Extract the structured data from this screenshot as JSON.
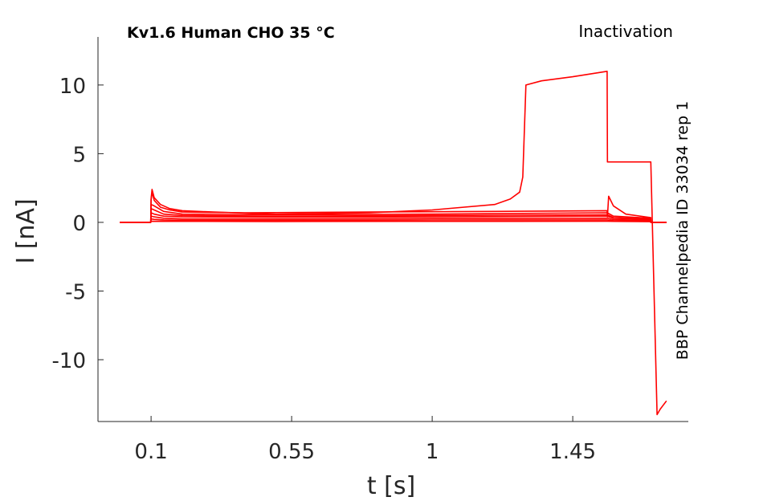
{
  "chart_data": {
    "type": "line",
    "title": "Kv1.6  Human  CHO  35 °C",
    "protocol_label": "Inactivation",
    "source_label": "BBP Channelpedia ID 33034 rep 1",
    "xlabel": "t [s]",
    "ylabel": "I [nA]",
    "xlim": [
      -0.07,
      1.82
    ],
    "ylim": [
      -14.5,
      13.5
    ],
    "xticks": [
      0.1,
      0.55,
      1,
      1.45
    ],
    "xtick_labels": [
      "0.1",
      "0.55",
      "1",
      "1.45"
    ],
    "yticks": [
      10,
      5,
      0,
      -5,
      -10
    ],
    "ytick_labels": [
      "10",
      "5",
      "0",
      "-5",
      "-10"
    ],
    "grid": false,
    "line_color": "#ff0000",
    "series": [
      {
        "x": [
          0.0,
          0.099,
          0.1,
          0.103,
          0.11,
          0.13,
          0.16,
          0.2,
          0.3,
          0.5,
          0.8,
          1.0,
          1.2,
          1.25,
          1.28,
          1.29,
          1.3,
          1.35,
          1.45,
          1.56,
          1.561,
          1.565,
          1.57,
          1.6,
          1.65,
          1.7,
          1.72,
          1.73,
          1.75
        ],
        "y": [
          0.0,
          0.0,
          1.7,
          2.4,
          1.8,
          1.3,
          1.0,
          0.85,
          0.75,
          0.6,
          0.7,
          0.9,
          1.3,
          1.7,
          2.2,
          3.3,
          10.0,
          10.3,
          10.6,
          11.0,
          4.4,
          4.4,
          4.4,
          4.4,
          4.4,
          4.4,
          -14.0,
          -13.6,
          -13.0
        ]
      },
      {
        "x": [
          0.0,
          0.099,
          0.1,
          0.103,
          0.11,
          0.13,
          0.16,
          0.2,
          0.4,
          0.8,
          1.2,
          1.56,
          1.561,
          1.565,
          1.58,
          1.62,
          1.7,
          1.7,
          1.75
        ],
        "y": [
          0.0,
          0.0,
          1.6,
          2.2,
          1.6,
          1.1,
          0.9,
          0.75,
          0.7,
          0.75,
          0.8,
          0.85,
          0.4,
          1.9,
          1.2,
          0.6,
          0.35,
          0.0,
          0.0
        ]
      },
      {
        "x": [
          0.0,
          0.099,
          0.1,
          0.11,
          0.14,
          0.2,
          0.5,
          1.0,
          1.56,
          1.58,
          1.7,
          1.7,
          1.75
        ],
        "y": [
          0.0,
          0.0,
          1.3,
          1.2,
          0.8,
          0.6,
          0.55,
          0.6,
          0.7,
          0.45,
          0.3,
          0.0,
          0.0
        ]
      },
      {
        "x": [
          0.0,
          0.099,
          0.1,
          0.11,
          0.14,
          0.2,
          0.5,
          1.0,
          1.56,
          1.58,
          1.7,
          1.7,
          1.75
        ],
        "y": [
          0.0,
          0.0,
          1.0,
          0.9,
          0.6,
          0.5,
          0.45,
          0.5,
          0.55,
          0.35,
          0.25,
          0.0,
          0.0
        ]
      },
      {
        "x": [
          0.0,
          0.099,
          0.1,
          0.11,
          0.14,
          0.2,
          0.5,
          1.0,
          1.56,
          1.58,
          1.7,
          1.7,
          1.75
        ],
        "y": [
          0.0,
          0.0,
          0.7,
          0.6,
          0.45,
          0.4,
          0.38,
          0.4,
          0.45,
          0.3,
          0.2,
          0.0,
          0.0
        ]
      },
      {
        "x": [
          0.0,
          0.099,
          0.1,
          0.11,
          0.14,
          0.2,
          0.5,
          1.0,
          1.56,
          1.58,
          1.7,
          1.7,
          1.75
        ],
        "y": [
          0.0,
          0.0,
          0.45,
          0.4,
          0.3,
          0.25,
          0.25,
          0.28,
          0.3,
          0.2,
          0.15,
          0.0,
          0.0
        ]
      },
      {
        "x": [
          0.0,
          0.099,
          0.1,
          0.11,
          0.14,
          0.2,
          0.5,
          1.0,
          1.56,
          1.58,
          1.7,
          1.7,
          1.75
        ],
        "y": [
          0.0,
          0.0,
          0.25,
          0.22,
          0.18,
          0.15,
          0.15,
          0.17,
          0.18,
          0.12,
          0.1,
          0.0,
          0.0
        ]
      },
      {
        "x": [
          0.0,
          0.099,
          0.1,
          0.5,
          1.0,
          1.56,
          1.7,
          1.7,
          1.75
        ],
        "y": [
          0.0,
          0.0,
          0.08,
          0.06,
          0.07,
          0.08,
          0.05,
          0.0,
          0.0
        ]
      }
    ]
  }
}
